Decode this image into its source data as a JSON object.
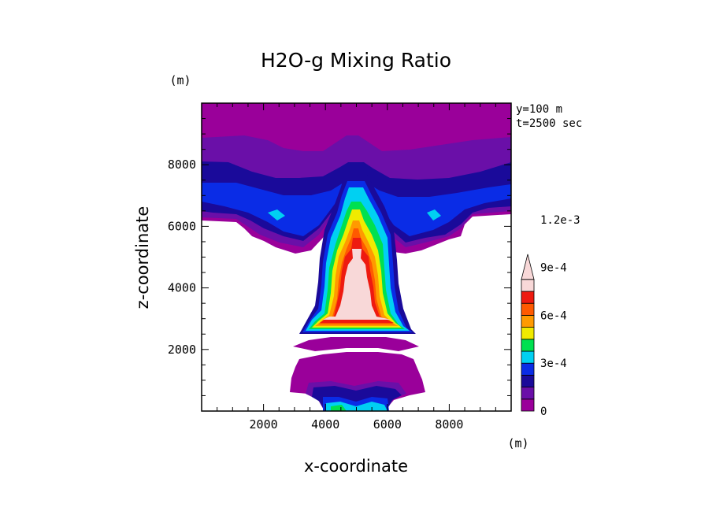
{
  "chart_data": {
    "type": "heatmap",
    "title": "H2O-g Mixing Ratio",
    "xlabel": "x-coordinate",
    "ylabel": "z-coordinate",
    "x_unit": "(m)",
    "y_unit": "(m)",
    "annotation_lines": [
      "y=100 m",
      "t=2500 sec"
    ],
    "xlim": [
      0,
      10000
    ],
    "ylim": [
      0,
      10000
    ],
    "x_ticks": [
      2000,
      4000,
      6000,
      8000
    ],
    "y_ticks": [
      2000,
      4000,
      6000,
      8000
    ],
    "x_tick_labels": [
      "2000",
      "4000",
      "6000",
      "8000"
    ],
    "y_tick_labels": [
      "2000",
      "4000",
      "6000",
      "8000"
    ],
    "colorbar": {
      "levels": [
        0,
        0.00015,
        0.0003,
        0.00045,
        0.0006,
        0.00075,
        0.0009,
        0.00105,
        0.0012
      ],
      "labels": [
        "0",
        "3e-4",
        "6e-4",
        "9e-4",
        "1.2e-3"
      ],
      "label_levels": [
        0,
        0.0003,
        0.0006,
        0.0009,
        0.0012
      ],
      "colors": [
        "#9a009a",
        "#6a0fa8",
        "#1a0a9a",
        "#0a2ce6",
        "#00d0f2",
        "#00e050",
        "#f0ea00",
        "#ff9a00",
        "#ff5a00",
        "#ee1a10",
        "#f8d8d8"
      ],
      "extend": "max"
    },
    "regions": [
      {
        "name": "upper-moist-layer",
        "level_index": 0,
        "x": [
          0,
          10000
        ],
        "z": [
          6200,
          10000
        ]
      },
      {
        "name": "anvil-outflow",
        "level_index": 2,
        "x": [
          0,
          10000
        ],
        "z": [
          5800,
          8000
        ]
      },
      {
        "name": "updraft-core",
        "level_index": 10,
        "x": [
          3500,
          6500
        ],
        "z": [
          2700,
          5500
        ]
      },
      {
        "name": "lower-dome",
        "level_index": 0,
        "x": [
          2800,
          7200
        ],
        "z": [
          700,
          2200
        ]
      },
      {
        "name": "surface-core",
        "level_index": 4,
        "x": [
          4000,
          6000
        ],
        "z": [
          0,
          600
        ]
      }
    ]
  }
}
